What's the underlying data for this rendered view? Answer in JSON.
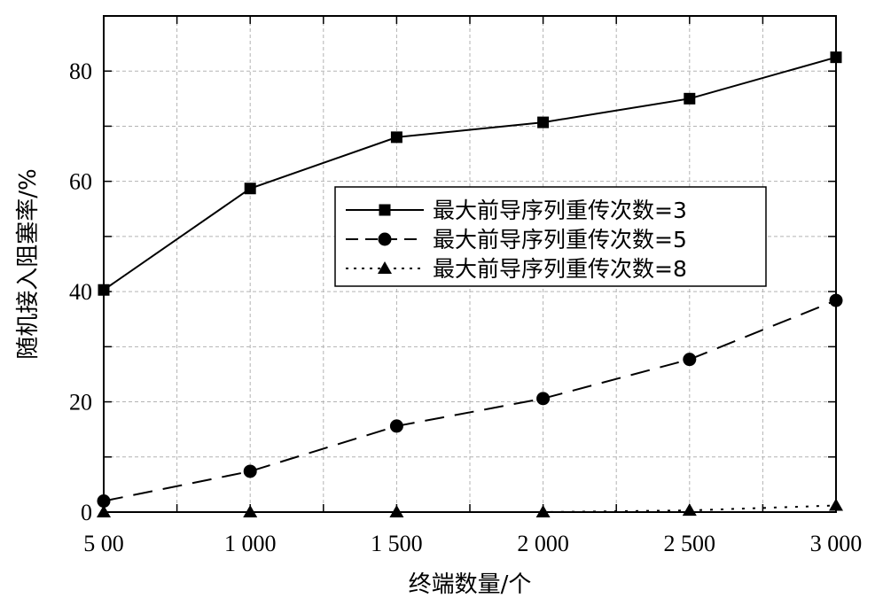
{
  "chart_data": {
    "type": "line",
    "xlabel": "终端数量/个",
    "ylabel": "随机接入阻塞率/%",
    "x": [
      500,
      1000,
      1500,
      2000,
      2500,
      3000
    ],
    "x_tick_labels": [
      "5 00",
      "1 000",
      "1 500",
      "2 000",
      "2 500",
      "3 000"
    ],
    "xlim": [
      500,
      3000
    ],
    "ylim": [
      0,
      90
    ],
    "y_ticks": [
      0,
      20,
      40,
      60,
      80
    ],
    "y_tick_labels": [
      "0",
      "20",
      "40",
      "60",
      "80"
    ],
    "grid": true,
    "legend_position": "center-right",
    "series": [
      {
        "name": "最大前导序列重传次数=3",
        "values": [
          40.3,
          58.7,
          68.0,
          70.7,
          75.0,
          82.5
        ],
        "marker": "square",
        "line_style": "solid",
        "color": "#000000"
      },
      {
        "name": "最大前导序列重传次数=5",
        "values": [
          2.0,
          7.4,
          15.6,
          20.6,
          27.7,
          38.4
        ],
        "marker": "circle",
        "line_style": "dashed",
        "color": "#000000"
      },
      {
        "name": "最大前导序列重传次数=8",
        "values": [
          0.0,
          0.0,
          0.0,
          0.0,
          0.3,
          1.2
        ],
        "marker": "triangle",
        "line_style": "dotted",
        "color": "#000000"
      }
    ]
  }
}
